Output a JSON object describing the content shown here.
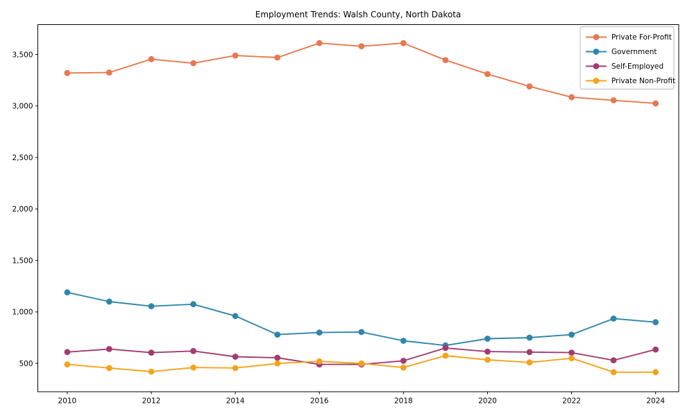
{
  "title": "Employment Trends: Walsh County, North Dakota",
  "chart_data": {
    "type": "line",
    "x": [
      2010,
      2011,
      2012,
      2013,
      2014,
      2015,
      2016,
      2017,
      2018,
      2019,
      2020,
      2021,
      2022,
      2023,
      2024
    ],
    "series": [
      {
        "name": "Private For-Profit",
        "color": "#e8784d",
        "values": [
          3320,
          3325,
          3455,
          3415,
          3490,
          3470,
          3610,
          3580,
          3610,
          3445,
          3310,
          3190,
          3085,
          3055,
          3025
        ]
      },
      {
        "name": "Government",
        "color": "#2e86ab",
        "values": [
          1190,
          1100,
          1055,
          1075,
          960,
          780,
          800,
          805,
          720,
          675,
          740,
          750,
          780,
          935,
          900
        ]
      },
      {
        "name": "Self-Employed",
        "color": "#a23b72",
        "values": [
          610,
          640,
          605,
          620,
          565,
          555,
          490,
          490,
          525,
          650,
          615,
          610,
          605,
          530,
          635
        ]
      },
      {
        "name": "Private Non-Profit",
        "color": "#f5a31b",
        "values": [
          490,
          455,
          420,
          460,
          455,
          500,
          520,
          500,
          460,
          575,
          535,
          510,
          550,
          415,
          415
        ]
      }
    ],
    "xlabel": "",
    "ylabel": "",
    "xlim": [
      2009.3,
      2024.55
    ],
    "ylim": [
      225,
      3790
    ],
    "yticks": [
      500,
      1000,
      1500,
      2000,
      2500,
      3000,
      3500
    ],
    "ytick_labels": [
      "500",
      "1,000",
      "1,500",
      "2,000",
      "2,500",
      "3,000",
      "3,500"
    ],
    "xticks": [
      2010,
      2012,
      2014,
      2016,
      2018,
      2020,
      2022,
      2024
    ],
    "xtick_labels": [
      "2010",
      "2012",
      "2014",
      "2016",
      "2018",
      "2020",
      "2022",
      "2024"
    ],
    "grid": false,
    "legend_position": "upper right",
    "axis_color": "#000000",
    "background_color": "#ffffff",
    "legend_border_color": "#b8b8b8"
  }
}
